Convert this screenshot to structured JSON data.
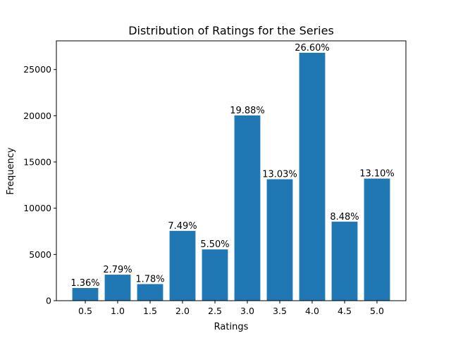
{
  "chart_data": {
    "type": "bar",
    "title": "Distribution of Ratings for the Series",
    "xlabel": "Ratings",
    "ylabel": "Frequency",
    "categories": [
      "0.5",
      "1.0",
      "1.5",
      "2.0",
      "2.5",
      "3.0",
      "3.5",
      "4.0",
      "4.5",
      "5.0"
    ],
    "values": [
      1371,
      2812,
      1794,
      7550,
      5544,
      20038,
      13134,
      26813,
      8548,
      13205
    ],
    "percent_labels": [
      "1.36%",
      "2.79%",
      "1.78%",
      "7.49%",
      "5.50%",
      "19.88%",
      "13.03%",
      "26.60%",
      "8.48%",
      "13.10%"
    ],
    "color": "#1f77b4",
    "ylim": [
      0,
      28100
    ],
    "yticks": [
      0,
      5000,
      10000,
      15000,
      20000,
      25000
    ],
    "grid": false
  }
}
